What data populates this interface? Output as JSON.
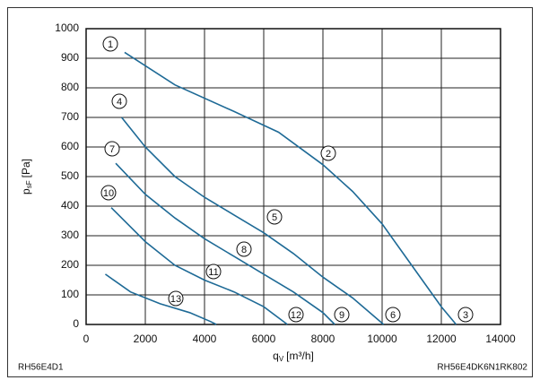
{
  "chart_data": {
    "type": "line",
    "x_label": {
      "symbol": "q",
      "subscript": "V",
      "unit": "[m³/h]"
    },
    "y_label": {
      "symbol": "p",
      "subscript": "sF",
      "unit": "[Pa]"
    },
    "xlim": [
      0,
      14000
    ],
    "xticks": [
      0,
      2000,
      4000,
      6000,
      8000,
      10000,
      12000,
      14000
    ],
    "ylim": [
      0,
      1000
    ],
    "yticks": [
      0,
      100,
      200,
      300,
      400,
      500,
      600,
      700,
      800,
      900,
      1000
    ],
    "grid": true,
    "series": [
      {
        "color": "#1e6a96",
        "x": [
          1300,
          3000,
          5000,
          6500,
          8000,
          9000,
          10000,
          11000,
          12000,
          12500
        ],
        "values": [
          920,
          810,
          720,
          650,
          540,
          450,
          340,
          200,
          60,
          0
        ]
      },
      {
        "color": "#1e6a96",
        "x": [
          1200,
          2000,
          3000,
          4000,
          5000,
          6000,
          7000,
          8000,
          9000,
          10050
        ],
        "values": [
          700,
          600,
          500,
          430,
          370,
          310,
          240,
          160,
          90,
          0
        ]
      },
      {
        "color": "#1e6a96",
        "x": [
          1000,
          2000,
          3000,
          4000,
          5000,
          6000,
          7000,
          8000,
          8400
        ],
        "values": [
          545,
          440,
          360,
          290,
          230,
          170,
          110,
          40,
          0
        ]
      },
      {
        "color": "#1e6a96",
        "x": [
          850,
          2000,
          3000,
          4000,
          5000,
          6000,
          6800
        ],
        "values": [
          395,
          280,
          200,
          150,
          110,
          60,
          0
        ]
      },
      {
        "color": "#1e6a96",
        "x": [
          650,
          1500,
          2500,
          3500,
          4200,
          4400
        ],
        "values": [
          170,
          110,
          70,
          40,
          10,
          0
        ]
      }
    ],
    "annotations": [
      "1",
      "2",
      "3",
      "4",
      "5",
      "6",
      "7",
      "8",
      "9",
      "10",
      "11",
      "12",
      "13"
    ],
    "footer_left": "RH56E4D1",
    "footer_right": "RH56E4DK6N1RK802"
  }
}
